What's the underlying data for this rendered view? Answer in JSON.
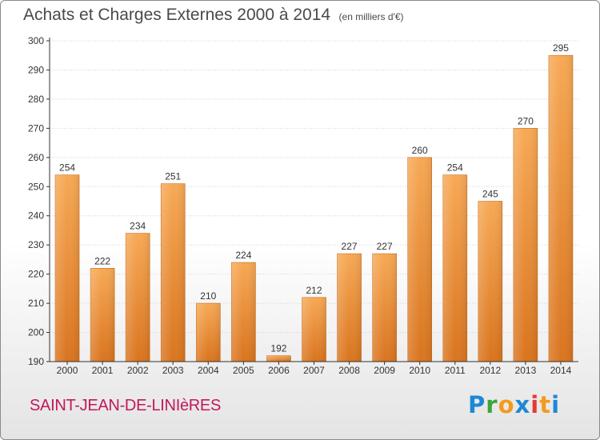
{
  "chart_data": {
    "type": "bar",
    "title": "Achats et Charges Externes 2000 à 2014",
    "subtitle": "(en milliers d'€)",
    "categories": [
      "2000",
      "2001",
      "2002",
      "2003",
      "2004",
      "2005",
      "2006",
      "2007",
      "2008",
      "2009",
      "2010",
      "2011",
      "2012",
      "2013",
      "2014"
    ],
    "values": [
      254,
      222,
      234,
      251,
      210,
      224,
      192,
      212,
      227,
      227,
      260,
      254,
      245,
      270,
      295
    ],
    "xlabel": "",
    "ylabel": "",
    "ylim": [
      190,
      300
    ],
    "yticks": [
      190,
      200,
      210,
      220,
      230,
      240,
      250,
      260,
      270,
      280,
      290,
      300
    ],
    "grid": true,
    "legend": "none",
    "bar_color": "#f0923a"
  },
  "footer": {
    "commune": "SAINT-JEAN-DE-LINIèRES",
    "logo_letters": [
      "P",
      "r",
      "o",
      "x",
      "i",
      "t",
      "i"
    ]
  }
}
